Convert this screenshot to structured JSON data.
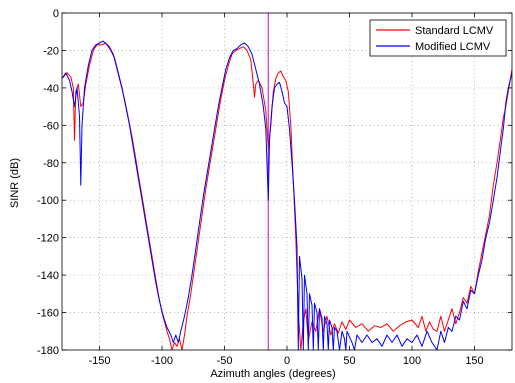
{
  "chart_data": {
    "type": "line",
    "title": "",
    "xlabel": "Azimuth angles (degrees)",
    "ylabel": "SINR (dB)",
    "xlim": [
      -180,
      180
    ],
    "ylim": [
      -180,
      0
    ],
    "xticks": [
      -150,
      -100,
      -50,
      0,
      50,
      100,
      150
    ],
    "yticks": [
      0,
      -20,
      -40,
      -60,
      -80,
      -100,
      -120,
      -140,
      -160,
      -180
    ],
    "grid": "dotted",
    "legend_position": "top-right",
    "vertical_marker": {
      "x": -15,
      "color": "#cc00cc"
    },
    "series": [
      {
        "name": "Standard LCMV",
        "color": "#ff0000",
        "points": [
          [
            -180,
            -35
          ],
          [
            -176,
            -32
          ],
          [
            -173,
            -34
          ],
          [
            -171,
            -40
          ],
          [
            -170,
            -68
          ],
          [
            -169,
            -42
          ],
          [
            -167,
            -38
          ],
          [
            -165,
            -50
          ],
          [
            -163,
            -48
          ],
          [
            -161,
            -38
          ],
          [
            -158,
            -28
          ],
          [
            -155,
            -20
          ],
          [
            -152,
            -17
          ],
          [
            -148,
            -17
          ],
          [
            -145,
            -16
          ],
          [
            -142,
            -18
          ],
          [
            -139,
            -22
          ],
          [
            -136,
            -30
          ],
          [
            -133,
            -38
          ],
          [
            -130,
            -46
          ],
          [
            -127,
            -56
          ],
          [
            -124,
            -66
          ],
          [
            -121,
            -78
          ],
          [
            -118,
            -90
          ],
          [
            -115,
            -102
          ],
          [
            -112,
            -114
          ],
          [
            -109,
            -126
          ],
          [
            -106,
            -138
          ],
          [
            -103,
            -150
          ],
          [
            -100,
            -160
          ],
          [
            -98,
            -165
          ],
          [
            -96,
            -170
          ],
          [
            -94,
            -174
          ],
          [
            -92,
            -180
          ],
          [
            -90,
            -176
          ],
          [
            -88,
            -178
          ],
          [
            -86,
            -174
          ],
          [
            -84,
            -180
          ],
          [
            -82,
            -172
          ],
          [
            -80,
            -162
          ],
          [
            -77,
            -150
          ],
          [
            -74,
            -136
          ],
          [
            -71,
            -122
          ],
          [
            -68,
            -108
          ],
          [
            -65,
            -94
          ],
          [
            -62,
            -82
          ],
          [
            -59,
            -70
          ],
          [
            -56,
            -58
          ],
          [
            -53,
            -46
          ],
          [
            -50,
            -36
          ],
          [
            -47,
            -28
          ],
          [
            -44,
            -22
          ],
          [
            -41,
            -20
          ],
          [
            -38,
            -19
          ],
          [
            -35,
            -18
          ],
          [
            -32,
            -20
          ],
          [
            -29,
            -25
          ],
          [
            -27,
            -38
          ],
          [
            -26,
            -45
          ],
          [
            -25,
            -38
          ],
          [
            -23,
            -36
          ],
          [
            -20,
            -40
          ],
          [
            -17,
            -52
          ],
          [
            -15,
            -72
          ],
          [
            -13,
            -60
          ],
          [
            -11,
            -42
          ],
          [
            -9,
            -35
          ],
          [
            -7,
            -32
          ],
          [
            -5,
            -31
          ],
          [
            -3,
            -34
          ],
          [
            -1,
            -36
          ],
          [
            1,
            -42
          ],
          [
            3,
            -60
          ],
          [
            5,
            -90
          ],
          [
            7,
            -120
          ],
          [
            9,
            -160
          ],
          [
            11,
            -180
          ],
          [
            13,
            -165
          ],
          [
            15,
            -158
          ],
          [
            17,
            -175
          ],
          [
            20,
            -165
          ],
          [
            23,
            -170
          ],
          [
            26,
            -158
          ],
          [
            29,
            -170
          ],
          [
            32,
            -162
          ],
          [
            35,
            -172
          ],
          [
            38,
            -166
          ],
          [
            41,
            -171
          ],
          [
            44,
            -165
          ],
          [
            47,
            -169
          ],
          [
            50,
            -164
          ],
          [
            55,
            -168
          ],
          [
            60,
            -166
          ],
          [
            65,
            -170
          ],
          [
            70,
            -167
          ],
          [
            75,
            -168
          ],
          [
            80,
            -166
          ],
          [
            85,
            -170
          ],
          [
            90,
            -167
          ],
          [
            95,
            -165
          ],
          [
            100,
            -164
          ],
          [
            105,
            -168
          ],
          [
            108,
            -162
          ],
          [
            111,
            -170
          ],
          [
            114,
            -165
          ],
          [
            117,
            -169
          ],
          [
            120,
            -170
          ],
          [
            123,
            -162
          ],
          [
            126,
            -170
          ],
          [
            129,
            -164
          ],
          [
            132,
            -158
          ],
          [
            135,
            -166
          ],
          [
            138,
            -160
          ],
          [
            141,
            -152
          ],
          [
            144,
            -155
          ],
          [
            147,
            -146
          ],
          [
            150,
            -150
          ],
          [
            153,
            -138
          ],
          [
            156,
            -128
          ],
          [
            159,
            -118
          ],
          [
            162,
            -108
          ],
          [
            165,
            -92
          ],
          [
            168,
            -80
          ],
          [
            171,
            -66
          ],
          [
            173,
            -56
          ],
          [
            175,
            -50
          ],
          [
            177,
            -42
          ],
          [
            180,
            -30
          ]
        ]
      },
      {
        "name": "Modified LCMV",
        "color": "#0000ff",
        "points": [
          [
            -180,
            -35
          ],
          [
            -177,
            -32
          ],
          [
            -174,
            -36
          ],
          [
            -172,
            -42
          ],
          [
            -170,
            -50
          ],
          [
            -168,
            -40
          ],
          [
            -166,
            -55
          ],
          [
            -165,
            -92
          ],
          [
            -164,
            -60
          ],
          [
            -162,
            -40
          ],
          [
            -159,
            -28
          ],
          [
            -156,
            -20
          ],
          [
            -153,
            -17
          ],
          [
            -150,
            -16
          ],
          [
            -147,
            -15
          ],
          [
            -144,
            -17
          ],
          [
            -141,
            -20
          ],
          [
            -138,
            -24
          ],
          [
            -135,
            -32
          ],
          [
            -132,
            -40
          ],
          [
            -129,
            -50
          ],
          [
            -126,
            -60
          ],
          [
            -123,
            -72
          ],
          [
            -120,
            -84
          ],
          [
            -117,
            -96
          ],
          [
            -114,
            -108
          ],
          [
            -111,
            -120
          ],
          [
            -108,
            -132
          ],
          [
            -105,
            -144
          ],
          [
            -102,
            -154
          ],
          [
            -99,
            -162
          ],
          [
            -96,
            -168
          ],
          [
            -93,
            -172
          ],
          [
            -91,
            -176
          ],
          [
            -89,
            -172
          ],
          [
            -87,
            -176
          ],
          [
            -85,
            -170
          ],
          [
            -82,
            -162
          ],
          [
            -79,
            -152
          ],
          [
            -76,
            -140
          ],
          [
            -73,
            -126
          ],
          [
            -70,
            -112
          ],
          [
            -67,
            -98
          ],
          [
            -64,
            -86
          ],
          [
            -61,
            -74
          ],
          [
            -58,
            -62
          ],
          [
            -55,
            -50
          ],
          [
            -52,
            -40
          ],
          [
            -49,
            -30
          ],
          [
            -46,
            -24
          ],
          [
            -43,
            -20
          ],
          [
            -40,
            -19
          ],
          [
            -37,
            -17
          ],
          [
            -34,
            -16
          ],
          [
            -31,
            -18
          ],
          [
            -28,
            -22
          ],
          [
            -25,
            -30
          ],
          [
            -22,
            -38
          ],
          [
            -19,
            -50
          ],
          [
            -17,
            -62
          ],
          [
            -15,
            -100
          ],
          [
            -14,
            -68
          ],
          [
            -12,
            -50
          ],
          [
            -10,
            -40
          ],
          [
            -8,
            -38
          ],
          [
            -6,
            -37
          ],
          [
            -4,
            -42
          ],
          [
            -2,
            -48
          ],
          [
            0,
            -50
          ],
          [
            2,
            -62
          ],
          [
            4,
            -80
          ],
          [
            6,
            -100
          ],
          [
            8,
            -125
          ],
          [
            9,
            -180
          ],
          [
            10,
            -130
          ],
          [
            12,
            -142
          ],
          [
            13,
            -180
          ],
          [
            14,
            -140
          ],
          [
            16,
            -150
          ],
          [
            17,
            -180
          ],
          [
            18,
            -150
          ],
          [
            20,
            -156
          ],
          [
            21,
            -180
          ],
          [
            22,
            -155
          ],
          [
            24,
            -160
          ],
          [
            25,
            -180
          ],
          [
            26,
            -158
          ],
          [
            28,
            -163
          ],
          [
            29,
            -180
          ],
          [
            30,
            -162
          ],
          [
            32,
            -166
          ],
          [
            33,
            -180
          ],
          [
            34,
            -164
          ],
          [
            36,
            -168
          ],
          [
            37,
            -180
          ],
          [
            38,
            -168
          ],
          [
            40,
            -170
          ],
          [
            42,
            -180
          ],
          [
            44,
            -170
          ],
          [
            46,
            -174
          ],
          [
            47,
            -180
          ],
          [
            48,
            -170
          ],
          [
            52,
            -176
          ],
          [
            54,
            -180
          ],
          [
            56,
            -172
          ],
          [
            60,
            -176
          ],
          [
            64,
            -172
          ],
          [
            68,
            -176
          ],
          [
            72,
            -174
          ],
          [
            76,
            -178
          ],
          [
            80,
            -172
          ],
          [
            84,
            -176
          ],
          [
            88,
            -172
          ],
          [
            92,
            -178
          ],
          [
            96,
            -174
          ],
          [
            100,
            -176
          ],
          [
            104,
            -172
          ],
          [
            108,
            -178
          ],
          [
            112,
            -170
          ],
          [
            116,
            -176
          ],
          [
            120,
            -180
          ],
          [
            123,
            -170
          ],
          [
            126,
            -176
          ],
          [
            129,
            -168
          ],
          [
            132,
            -170
          ],
          [
            135,
            -162
          ],
          [
            138,
            -164
          ],
          [
            141,
            -154
          ],
          [
            144,
            -158
          ],
          [
            147,
            -148
          ],
          [
            150,
            -150
          ],
          [
            153,
            -140
          ],
          [
            156,
            -132
          ],
          [
            159,
            -120
          ],
          [
            162,
            -112
          ],
          [
            165,
            -100
          ],
          [
            168,
            -88
          ],
          [
            171,
            -72
          ],
          [
            173,
            -62
          ],
          [
            175,
            -48
          ],
          [
            177,
            -40
          ],
          [
            180,
            -32
          ]
        ]
      }
    ]
  }
}
